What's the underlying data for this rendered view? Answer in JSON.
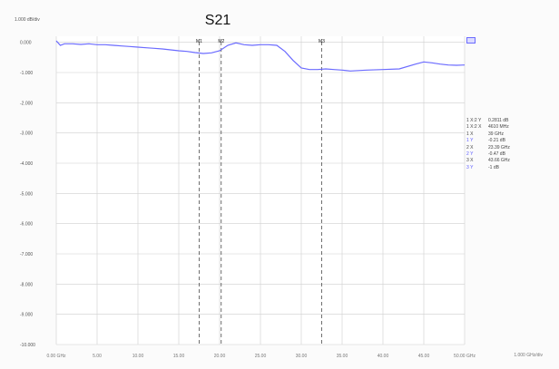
{
  "chart_data": {
    "type": "line",
    "title": "S21",
    "ylabel_unit": "1.000 dB/div",
    "ylim": [
      -10,
      0.2
    ],
    "xlim": [
      0,
      50
    ],
    "grid": true,
    "y_ticks": [
      "0.000",
      "-1.000",
      "-2.000",
      "-3.000",
      "-4.000",
      "-5.000",
      "-6.000",
      "-7.000",
      "-8.000",
      "-9.000",
      "-10.000"
    ],
    "x_ticks": [
      "0.00 GHz",
      "5.00",
      "10.00",
      "15.00",
      "20.00",
      "25.00",
      "30.00",
      "35.00",
      "40.00",
      "45.00",
      "50.00 GHz"
    ],
    "x_end_label": "1.000 GHz/div",
    "legend": "S21",
    "series": [
      {
        "name": "S21",
        "color": "#6b6bff",
        "x": [
          0,
          0.5,
          1,
          2,
          3,
          4,
          5,
          6,
          7,
          8,
          9,
          10,
          11,
          12,
          13,
          14,
          15,
          16,
          17,
          18,
          19,
          20,
          21,
          22,
          23,
          24,
          25,
          26,
          27,
          28,
          29,
          30,
          31,
          32,
          33,
          34,
          35,
          36,
          38,
          40,
          42,
          44,
          45,
          46,
          47,
          48,
          49,
          50
        ],
        "y": [
          0.05,
          -0.1,
          -0.05,
          -0.05,
          -0.07,
          -0.05,
          -0.08,
          -0.08,
          -0.1,
          -0.12,
          -0.14,
          -0.16,
          -0.18,
          -0.2,
          -0.22,
          -0.25,
          -0.28,
          -0.3,
          -0.34,
          -0.37,
          -0.35,
          -0.28,
          -0.1,
          -0.02,
          -0.08,
          -0.1,
          -0.08,
          -0.08,
          -0.1,
          -0.3,
          -0.6,
          -0.85,
          -0.9,
          -0.9,
          -0.88,
          -0.9,
          -0.92,
          -0.95,
          -0.92,
          -0.9,
          -0.88,
          -0.72,
          -0.65,
          -0.68,
          -0.72,
          -0.75,
          -0.76,
          -0.75
        ]
      }
    ],
    "markers": [
      {
        "label": "M1",
        "x": 17.5
      },
      {
        "label": "M2",
        "x": 20.2
      },
      {
        "label": "M3",
        "x": 32.5
      }
    ],
    "readout": [
      {
        "key": "1 X:2 Y",
        "value": "0.2811 dB",
        "blue": false
      },
      {
        "key": "1 X:2 X",
        "value": "4610 MHz",
        "blue": false
      },
      {
        "key": "1 X",
        "value": "39 GHz",
        "blue": false
      },
      {
        "key": "1 Y",
        "value": "-0.21 dB",
        "blue": true
      },
      {
        "key": "2 X",
        "value": "23.39 GHz",
        "blue": false
      },
      {
        "key": "2 Y",
        "value": "-0.47 dB",
        "blue": true
      },
      {
        "key": "3 X",
        "value": "43.66 GHz",
        "blue": false
      },
      {
        "key": "3 Y",
        "value": "-1 dB",
        "blue": true
      }
    ]
  }
}
